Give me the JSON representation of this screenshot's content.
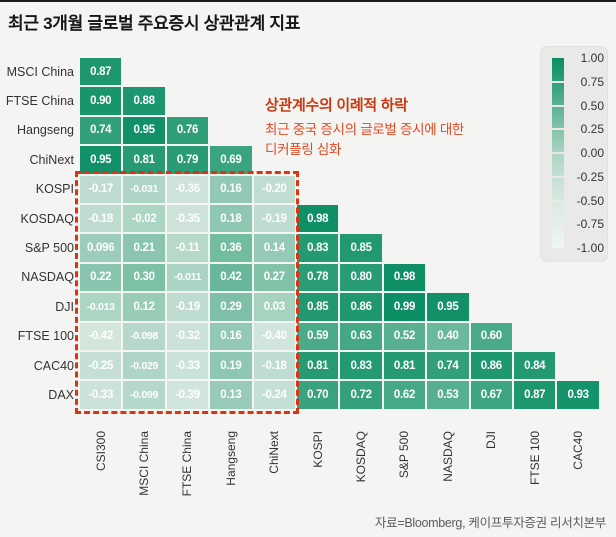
{
  "title": "최근 3개월 글로벌 주요증시 상관관계 지표",
  "source": "자료=Bloomberg, 케이프투자증권 리서치본부",
  "annotation": {
    "headline": "상관계수의 이례적 하락",
    "body_line1": "최근 중국 증시의 글로벌 증시에 대한",
    "body_line2": "디커플링 심화"
  },
  "chart_data": {
    "type": "heatmap",
    "subtype": "lower-triangular-correlation-matrix",
    "title": "최근 3개월 글로벌 주요증시 상관관계 지표",
    "columns": [
      "CSI300",
      "MSCI China",
      "FTSE China",
      "Hangseng",
      "ChiNext",
      "KOSPI",
      "KOSDAQ",
      "S&P 500",
      "NASDAQ",
      "DJI",
      "FTSE 100",
      "CAC40"
    ],
    "rows": [
      "MSCI China",
      "FTSE China",
      "Hangseng",
      "ChiNext",
      "KOSPI",
      "KOSDAQ",
      "S&P 500",
      "NASDAQ",
      "DJI",
      "FTSE 100",
      "CAC40",
      "DAX"
    ],
    "values": [
      [
        "0.87"
      ],
      [
        "0.90",
        "0.88"
      ],
      [
        "0.74",
        "0.95",
        "0.76"
      ],
      [
        "0.95",
        "0.81",
        "0.79",
        "0.69"
      ],
      [
        "-0.17",
        "-0.031",
        "-0.36",
        "0.16",
        "-0.20"
      ],
      [
        "-0.18",
        "-0.02",
        "-0.35",
        "0.18",
        "-0.19",
        "0.98"
      ],
      [
        "0.096",
        "0.21",
        "-0.11",
        "0.36",
        "0.14",
        "0.83",
        "0.85"
      ],
      [
        "0.22",
        "0.30",
        "-0.011",
        "0.42",
        "0.27",
        "0.78",
        "0.80",
        "0.98"
      ],
      [
        "-0.013",
        "0.12",
        "-0.19",
        "0.29",
        "0.03",
        "0.85",
        "0.86",
        "0.99",
        "0.95"
      ],
      [
        "-0.42",
        "-0.098",
        "-0.32",
        "0.16",
        "-0.40",
        "0.59",
        "0.63",
        "0.52",
        "0.40",
        "0.60"
      ],
      [
        "-0.25",
        "-0.029",
        "-0.33",
        "0.19",
        "-0.18",
        "0.81",
        "0.83",
        "0.81",
        "0.74",
        "0.86",
        "0.84"
      ],
      [
        "-0.33",
        "-0.099",
        "-0.39",
        "0.13",
        "-0.24",
        "0.70",
        "0.72",
        "0.62",
        "0.53",
        "0.67",
        "0.87",
        "0.93"
      ]
    ],
    "colorbar": {
      "ticks": [
        "1.00",
        "0.75",
        "0.50",
        "0.25",
        "0.00",
        "-0.25",
        "-0.50",
        "-0.75",
        "-1.00"
      ],
      "min": -1.0,
      "max": 1.0,
      "position": "right"
    },
    "highlight_box": {
      "description": "red dashed box over rows KOSPI–DAX × columns CSI300–ChiNext",
      "row_range": [
        "KOSPI",
        "DAX"
      ],
      "col_range": [
        "CSI300",
        "ChiNext"
      ],
      "border_color": "#e0320e"
    },
    "color_scale": {
      "stops": [
        {
          "value": -1.0,
          "color": "#eff6f2"
        },
        {
          "value": -0.5,
          "color": "#d8e9e0"
        },
        {
          "value": -0.25,
          "color": "#c5dfd4"
        },
        {
          "value": 0.0,
          "color": "#abd4c3"
        },
        {
          "value": 0.25,
          "color": "#84c3ab"
        },
        {
          "value": 0.5,
          "color": "#5bb292"
        },
        {
          "value": 0.75,
          "color": "#2f9f78"
        },
        {
          "value": 1.0,
          "color": "#0b8e64"
        }
      ],
      "cell_text_color": "#ffffff"
    },
    "grid": false,
    "legend_position": "right"
  }
}
